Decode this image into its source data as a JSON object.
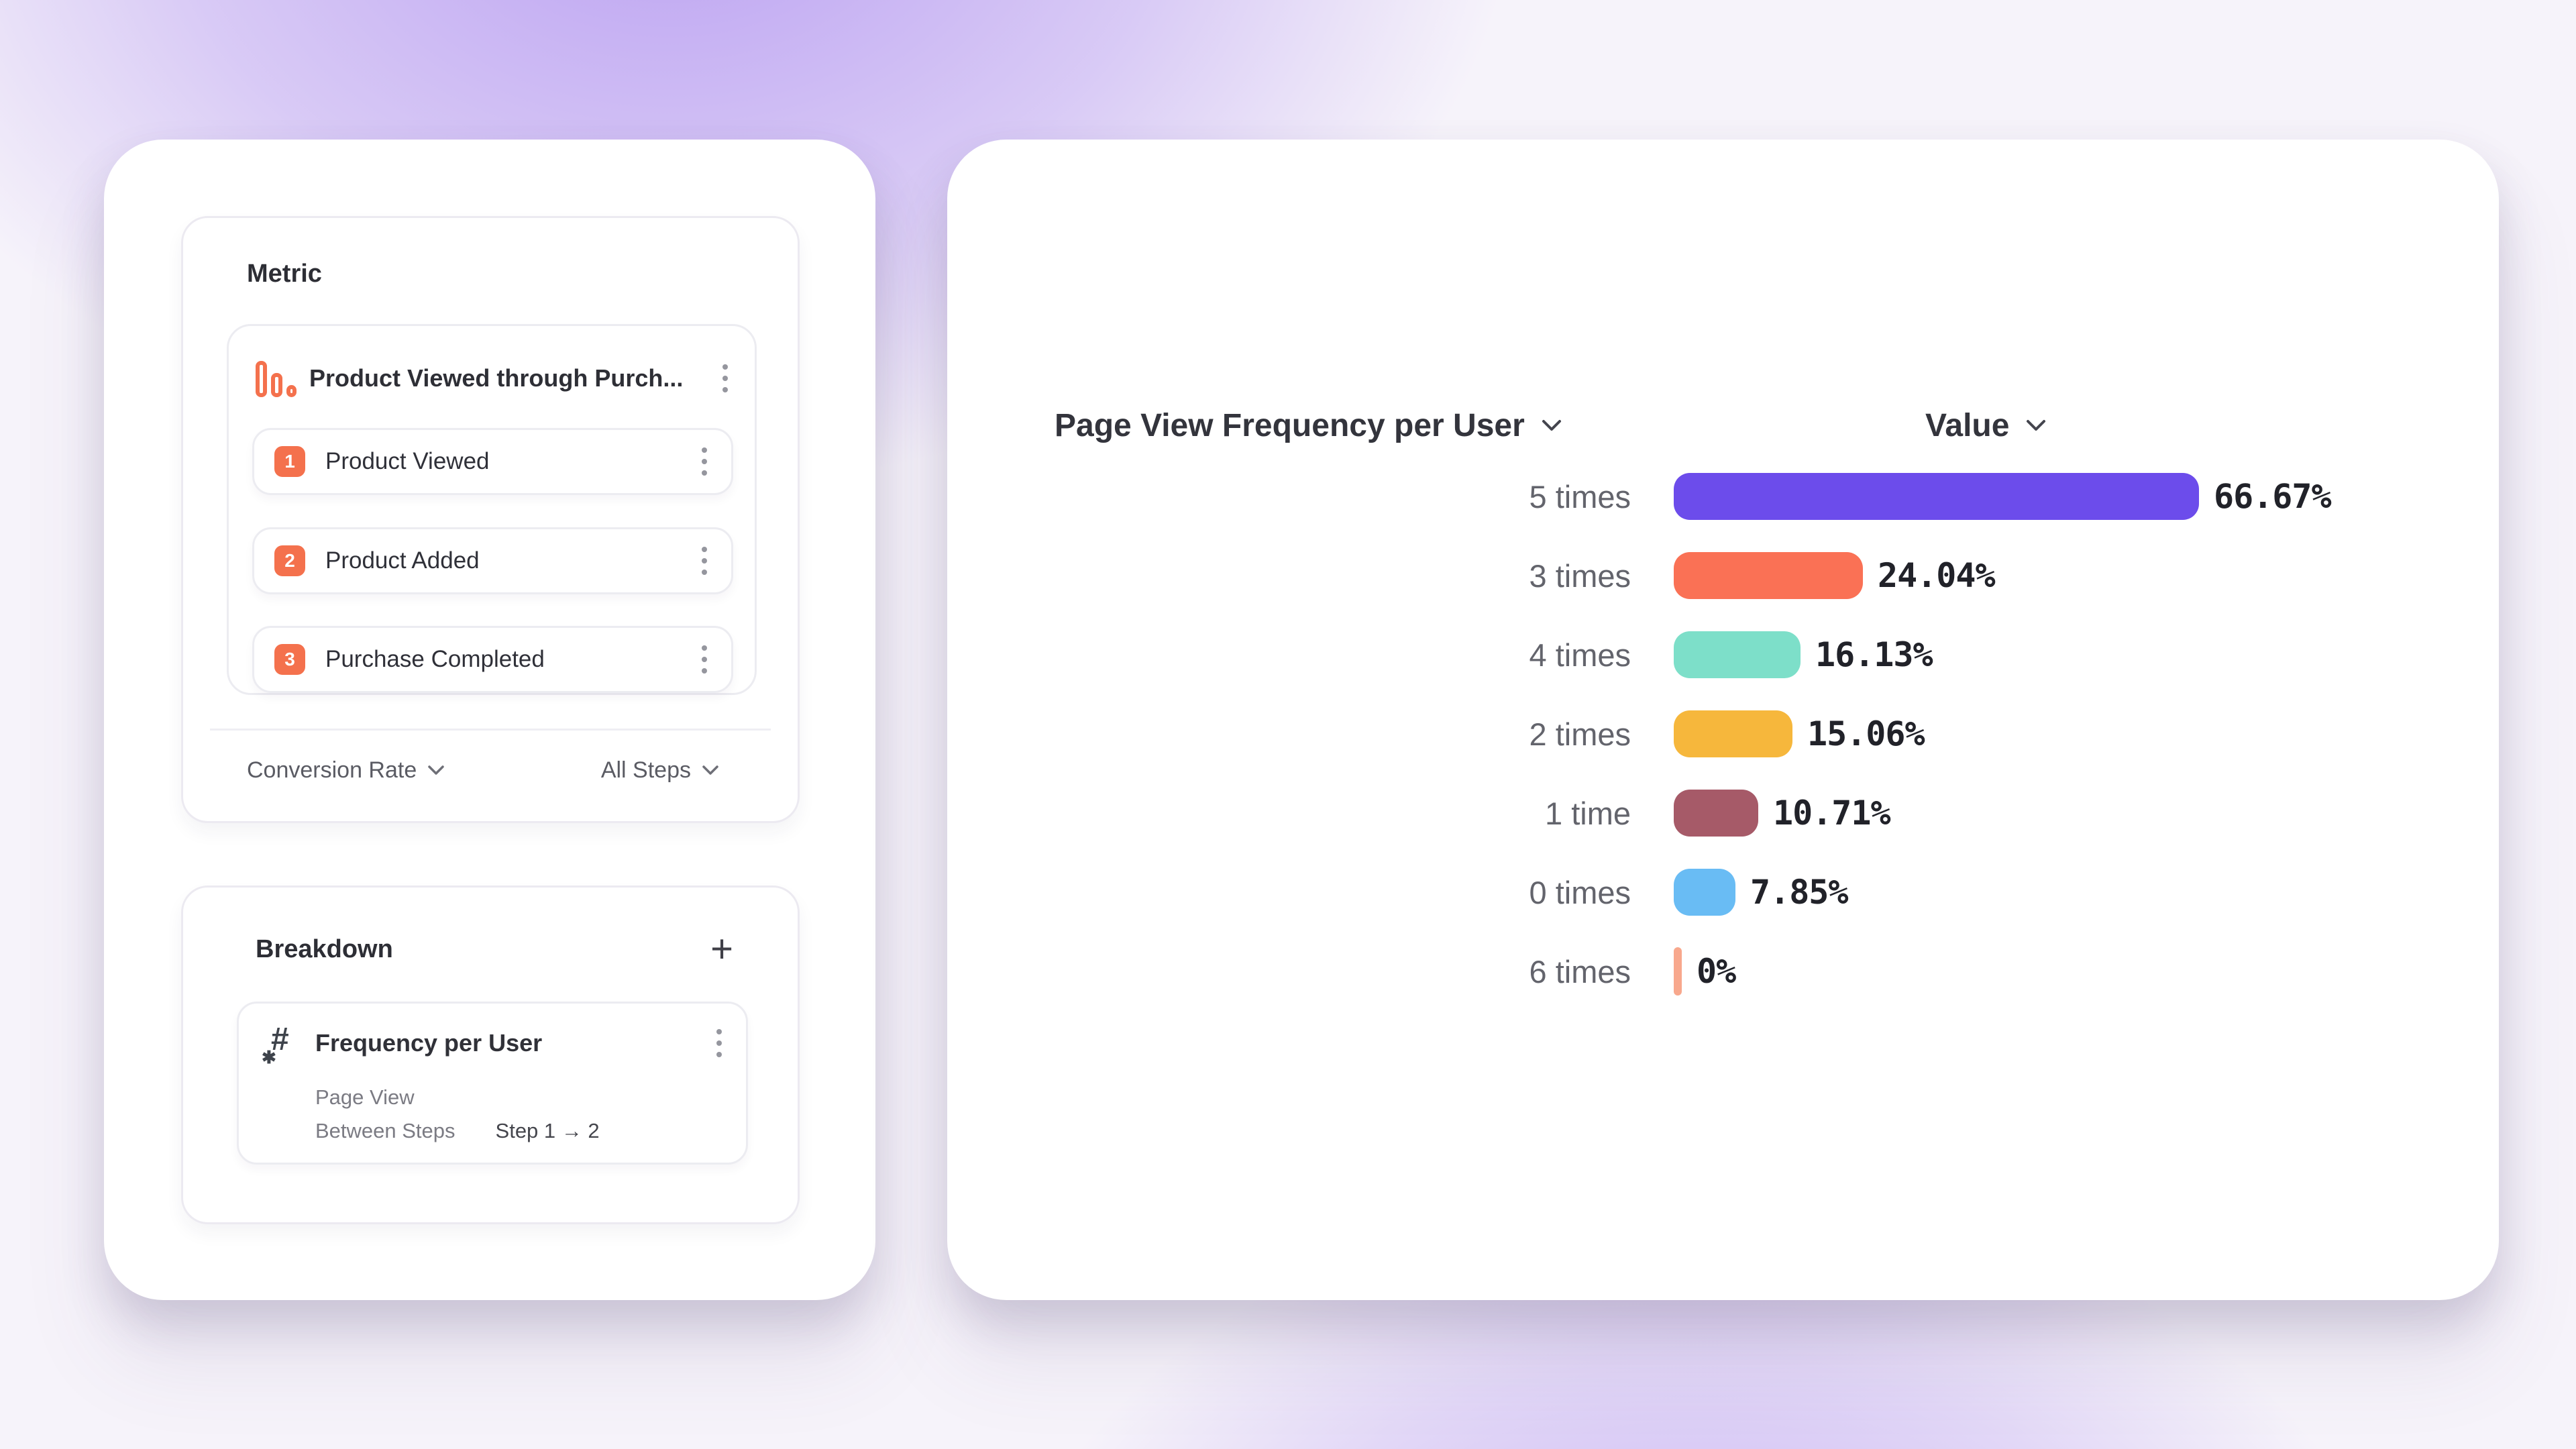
{
  "metric_panel": {
    "title": "Metric",
    "funnel": {
      "title": "Product Viewed through Purch...",
      "icon": "funnel-bars-icon",
      "steps": [
        {
          "number": "1",
          "label": "Product Viewed"
        },
        {
          "number": "2",
          "label": "Product Added"
        },
        {
          "number": "3",
          "label": "Purchase Completed"
        }
      ]
    },
    "footer": {
      "measurement_label": "Conversion Rate",
      "steps_scope_label": "All Steps"
    }
  },
  "breakdown_panel": {
    "title": "Breakdown",
    "add_label": "+",
    "item": {
      "icon": "numeric-property-icon",
      "title": "Frequency per User",
      "event": "Page View",
      "scope_label": "Between Steps",
      "scope_value": "Step 1 → 2"
    }
  },
  "chart": {
    "series_label": "Page View Frequency per User",
    "value_label": "Value"
  },
  "chart_data": {
    "type": "bar",
    "orientation": "horizontal",
    "title": "Page View Frequency per User",
    "categories": [
      "5 times",
      "3 times",
      "4 times",
      "2 times",
      "1 time",
      "0 times",
      "6 times"
    ],
    "values": [
      66.67,
      24.04,
      16.13,
      15.06,
      10.71,
      7.85,
      0
    ],
    "value_labels": [
      "66.67%",
      "24.04%",
      "16.13%",
      "15.06%",
      "10.71%",
      "7.85%",
      "0%"
    ],
    "colors": [
      "#6c4ceb",
      "#fa7155",
      "#7ddfc9",
      "#f6b73c",
      "#a65a68",
      "#69bcf4",
      "#f8a88d"
    ],
    "xlim": [
      0,
      66.67
    ],
    "grid": false,
    "legend": false
  },
  "colors": {
    "accent_coral": "#f4714d",
    "background_glow": "#936aeb",
    "card_background": "#ffffff"
  }
}
